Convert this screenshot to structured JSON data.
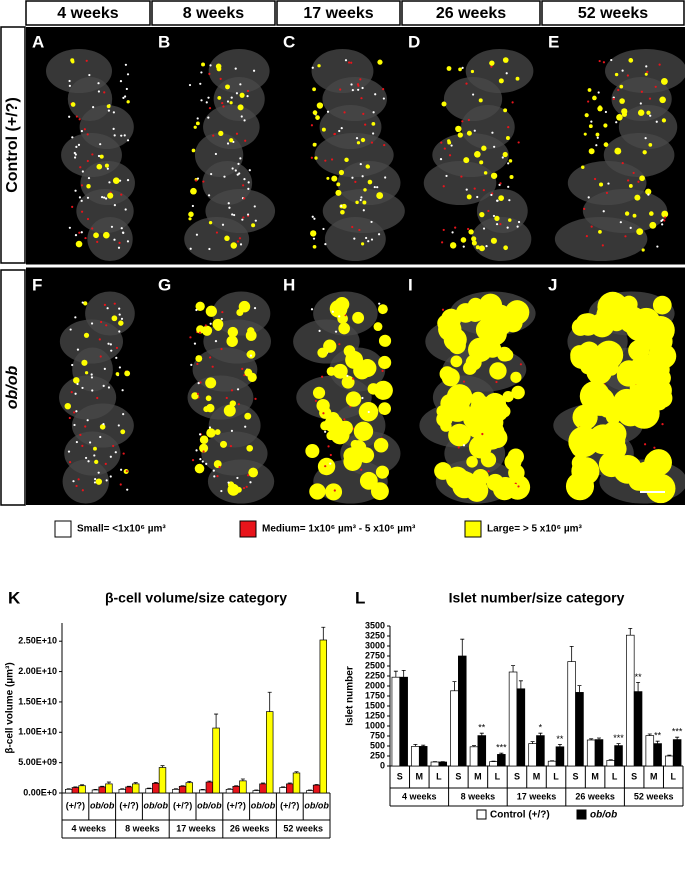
{
  "columns": [
    "4 weeks",
    "8 weeks",
    "17 weeks",
    "26 weeks",
    "52 weeks"
  ],
  "rows": [
    "Control (+/?)",
    "ob/ob"
  ],
  "panels": [
    "A",
    "B",
    "C",
    "D",
    "E",
    "F",
    "G",
    "H",
    "I",
    "J"
  ],
  "chart_data": [
    {
      "type": "bar",
      "label": "K",
      "title": "β-cell volume/size category",
      "y_label": "β-cell volume (µm³)",
      "groups": [
        "4 weeks",
        "8 weeks",
        "17 weeks",
        "26 weeks",
        "52 weeks"
      ],
      "categories": [
        "(+/?)",
        "ob/ob",
        "(+/?)",
        "ob/ob",
        "(+/?)",
        "ob/ob",
        "(+/?)",
        "ob/ob",
        "(+/?)",
        "ob/ob"
      ],
      "series": [
        {
          "name": "Small= <1x10⁶ µm³",
          "color": "#ffffff",
          "values": [
            600000000,
            500000000,
            600000000,
            700000000,
            600000000,
            500000000,
            600000000,
            400000000,
            900000000,
            400000000
          ],
          "errors": [
            100000000,
            100000000,
            100000000,
            100000000,
            100000000,
            100000000,
            100000000,
            100000000,
            100000000,
            100000000
          ]
        },
        {
          "name": "Medium= 1x10⁶ µm³ - 5 x10⁶ µm³",
          "color": "#e8141b",
          "values": [
            900000000,
            1000000000,
            1000000000,
            1600000000,
            1100000000,
            1800000000,
            1100000000,
            1500000000,
            1500000000,
            1300000000
          ],
          "errors": [
            100000000,
            100000000,
            100000000,
            150000000,
            100000000,
            150000000,
            100000000,
            150000000,
            150000000,
            100000000
          ]
        },
        {
          "name": "Large= > 5 x10⁶ µm³",
          "color": "#ffff00",
          "values": [
            1200000000,
            1500000000,
            1500000000,
            4200000000,
            1700000000,
            10700000000,
            2000000000,
            13400000000,
            3300000000,
            25200000000
          ],
          "errors": [
            150000000,
            300000000,
            200000000,
            300000000,
            200000000,
            2300000000,
            300000000,
            3200000000,
            200000000,
            2100000000
          ]
        }
      ],
      "ylim": [
        0,
        28000000000
      ],
      "yticks": [
        {
          "value": 0,
          "label": "0.00E+0"
        },
        {
          "value": 5000000000,
          "label": "5.00E+09"
        },
        {
          "value": 10000000000,
          "label": "1.00E+10"
        },
        {
          "value": 15000000000,
          "label": "1.50E+10"
        },
        {
          "value": 20000000000,
          "label": "2.00E+10"
        },
        {
          "value": 25000000000,
          "label": "2.50E+10"
        }
      ]
    },
    {
      "type": "bar",
      "label": "L",
      "title": "Islet number/size category",
      "y_label": "Islet number",
      "groups": [
        "4 weeks",
        "8 weeks",
        "17 weeks",
        "26 weeks",
        "52 weeks"
      ],
      "categories": [
        "S",
        "M",
        "L",
        "S",
        "M",
        "L",
        "S",
        "M",
        "L",
        "S",
        "M",
        "L",
        "S",
        "M",
        "L"
      ],
      "series": [
        {
          "name": "Control (+/?)",
          "color": "#ffffff",
          "values": [
            2220,
            490,
            100,
            1880,
            480,
            110,
            2350,
            560,
            120,
            2610,
            650,
            140,
            3270,
            760,
            250
          ],
          "errors": [
            150,
            50,
            10,
            230,
            30,
            10,
            160,
            50,
            10,
            380,
            30,
            15,
            170,
            40,
            20
          ]
        },
        {
          "name": "ob/ob",
          "color": "#000000",
          "values": [
            2220,
            490,
            100,
            2750,
            760,
            290,
            1930,
            760,
            480,
            1840,
            660,
            510,
            1860,
            560,
            660
          ],
          "errors": [
            170,
            30,
            10,
            420,
            60,
            30,
            200,
            60,
            60,
            170,
            40,
            50,
            230,
            60,
            60
          ],
          "significance": [
            null,
            null,
            null,
            null,
            "**",
            "***",
            null,
            "*",
            "**",
            null,
            null,
            "***",
            "**",
            "**",
            "***"
          ]
        }
      ],
      "ylim": [
        0,
        3500
      ],
      "yticks": [
        0,
        250,
        500,
        750,
        1000,
        1250,
        1500,
        1750,
        2000,
        2250,
        2500,
        2750,
        3000,
        3250,
        3500
      ]
    }
  ]
}
